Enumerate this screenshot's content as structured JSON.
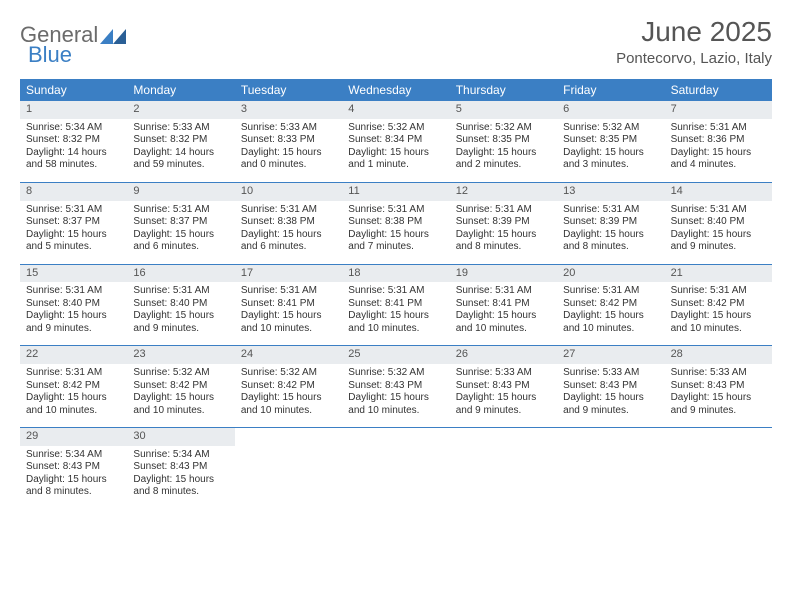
{
  "logo": {
    "text1": "General",
    "text2": "Blue"
  },
  "title": "June 2025",
  "location": "Pontecorvo, Lazio, Italy",
  "colors": {
    "header_bg": "#3b7fc4",
    "header_text": "#ffffff",
    "daynum_bg": "#e9ecef",
    "week_border": "#3b7fc4",
    "body_text": "#333333",
    "title_text": "#555555"
  },
  "day_labels": [
    "Sunday",
    "Monday",
    "Tuesday",
    "Wednesday",
    "Thursday",
    "Friday",
    "Saturday"
  ],
  "weeks": [
    [
      {
        "n": "1",
        "sr": "Sunrise: 5:34 AM",
        "ss": "Sunset: 8:32 PM",
        "dl1": "Daylight: 14 hours",
        "dl2": "and 58 minutes."
      },
      {
        "n": "2",
        "sr": "Sunrise: 5:33 AM",
        "ss": "Sunset: 8:32 PM",
        "dl1": "Daylight: 14 hours",
        "dl2": "and 59 minutes."
      },
      {
        "n": "3",
        "sr": "Sunrise: 5:33 AM",
        "ss": "Sunset: 8:33 PM",
        "dl1": "Daylight: 15 hours",
        "dl2": "and 0 minutes."
      },
      {
        "n": "4",
        "sr": "Sunrise: 5:32 AM",
        "ss": "Sunset: 8:34 PM",
        "dl1": "Daylight: 15 hours",
        "dl2": "and 1 minute."
      },
      {
        "n": "5",
        "sr": "Sunrise: 5:32 AM",
        "ss": "Sunset: 8:35 PM",
        "dl1": "Daylight: 15 hours",
        "dl2": "and 2 minutes."
      },
      {
        "n": "6",
        "sr": "Sunrise: 5:32 AM",
        "ss": "Sunset: 8:35 PM",
        "dl1": "Daylight: 15 hours",
        "dl2": "and 3 minutes."
      },
      {
        "n": "7",
        "sr": "Sunrise: 5:31 AM",
        "ss": "Sunset: 8:36 PM",
        "dl1": "Daylight: 15 hours",
        "dl2": "and 4 minutes."
      }
    ],
    [
      {
        "n": "8",
        "sr": "Sunrise: 5:31 AM",
        "ss": "Sunset: 8:37 PM",
        "dl1": "Daylight: 15 hours",
        "dl2": "and 5 minutes."
      },
      {
        "n": "9",
        "sr": "Sunrise: 5:31 AM",
        "ss": "Sunset: 8:37 PM",
        "dl1": "Daylight: 15 hours",
        "dl2": "and 6 minutes."
      },
      {
        "n": "10",
        "sr": "Sunrise: 5:31 AM",
        "ss": "Sunset: 8:38 PM",
        "dl1": "Daylight: 15 hours",
        "dl2": "and 6 minutes."
      },
      {
        "n": "11",
        "sr": "Sunrise: 5:31 AM",
        "ss": "Sunset: 8:38 PM",
        "dl1": "Daylight: 15 hours",
        "dl2": "and 7 minutes."
      },
      {
        "n": "12",
        "sr": "Sunrise: 5:31 AM",
        "ss": "Sunset: 8:39 PM",
        "dl1": "Daylight: 15 hours",
        "dl2": "and 8 minutes."
      },
      {
        "n": "13",
        "sr": "Sunrise: 5:31 AM",
        "ss": "Sunset: 8:39 PM",
        "dl1": "Daylight: 15 hours",
        "dl2": "and 8 minutes."
      },
      {
        "n": "14",
        "sr": "Sunrise: 5:31 AM",
        "ss": "Sunset: 8:40 PM",
        "dl1": "Daylight: 15 hours",
        "dl2": "and 9 minutes."
      }
    ],
    [
      {
        "n": "15",
        "sr": "Sunrise: 5:31 AM",
        "ss": "Sunset: 8:40 PM",
        "dl1": "Daylight: 15 hours",
        "dl2": "and 9 minutes."
      },
      {
        "n": "16",
        "sr": "Sunrise: 5:31 AM",
        "ss": "Sunset: 8:40 PM",
        "dl1": "Daylight: 15 hours",
        "dl2": "and 9 minutes."
      },
      {
        "n": "17",
        "sr": "Sunrise: 5:31 AM",
        "ss": "Sunset: 8:41 PM",
        "dl1": "Daylight: 15 hours",
        "dl2": "and 10 minutes."
      },
      {
        "n": "18",
        "sr": "Sunrise: 5:31 AM",
        "ss": "Sunset: 8:41 PM",
        "dl1": "Daylight: 15 hours",
        "dl2": "and 10 minutes."
      },
      {
        "n": "19",
        "sr": "Sunrise: 5:31 AM",
        "ss": "Sunset: 8:41 PM",
        "dl1": "Daylight: 15 hours",
        "dl2": "and 10 minutes."
      },
      {
        "n": "20",
        "sr": "Sunrise: 5:31 AM",
        "ss": "Sunset: 8:42 PM",
        "dl1": "Daylight: 15 hours",
        "dl2": "and 10 minutes."
      },
      {
        "n": "21",
        "sr": "Sunrise: 5:31 AM",
        "ss": "Sunset: 8:42 PM",
        "dl1": "Daylight: 15 hours",
        "dl2": "and 10 minutes."
      }
    ],
    [
      {
        "n": "22",
        "sr": "Sunrise: 5:31 AM",
        "ss": "Sunset: 8:42 PM",
        "dl1": "Daylight: 15 hours",
        "dl2": "and 10 minutes."
      },
      {
        "n": "23",
        "sr": "Sunrise: 5:32 AM",
        "ss": "Sunset: 8:42 PM",
        "dl1": "Daylight: 15 hours",
        "dl2": "and 10 minutes."
      },
      {
        "n": "24",
        "sr": "Sunrise: 5:32 AM",
        "ss": "Sunset: 8:42 PM",
        "dl1": "Daylight: 15 hours",
        "dl2": "and 10 minutes."
      },
      {
        "n": "25",
        "sr": "Sunrise: 5:32 AM",
        "ss": "Sunset: 8:43 PM",
        "dl1": "Daylight: 15 hours",
        "dl2": "and 10 minutes."
      },
      {
        "n": "26",
        "sr": "Sunrise: 5:33 AM",
        "ss": "Sunset: 8:43 PM",
        "dl1": "Daylight: 15 hours",
        "dl2": "and 9 minutes."
      },
      {
        "n": "27",
        "sr": "Sunrise: 5:33 AM",
        "ss": "Sunset: 8:43 PM",
        "dl1": "Daylight: 15 hours",
        "dl2": "and 9 minutes."
      },
      {
        "n": "28",
        "sr": "Sunrise: 5:33 AM",
        "ss": "Sunset: 8:43 PM",
        "dl1": "Daylight: 15 hours",
        "dl2": "and 9 minutes."
      }
    ],
    [
      {
        "n": "29",
        "sr": "Sunrise: 5:34 AM",
        "ss": "Sunset: 8:43 PM",
        "dl1": "Daylight: 15 hours",
        "dl2": "and 8 minutes."
      },
      {
        "n": "30",
        "sr": "Sunrise: 5:34 AM",
        "ss": "Sunset: 8:43 PM",
        "dl1": "Daylight: 15 hours",
        "dl2": "and 8 minutes."
      },
      {
        "empty": true
      },
      {
        "empty": true
      },
      {
        "empty": true
      },
      {
        "empty": true
      },
      {
        "empty": true
      }
    ]
  ]
}
